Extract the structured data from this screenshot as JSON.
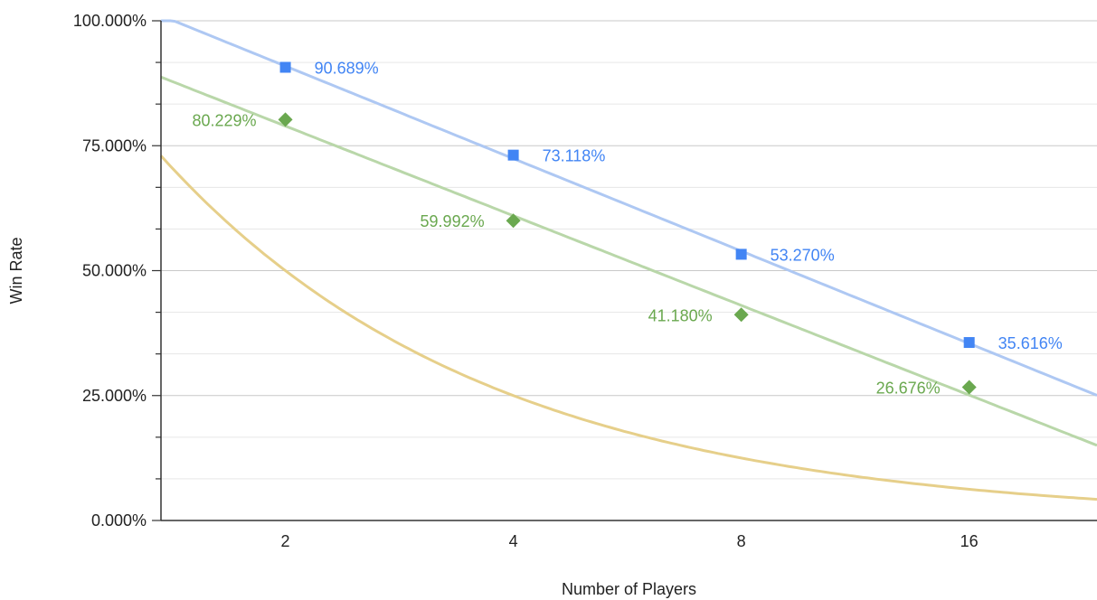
{
  "chart_data": {
    "type": "scatter",
    "xlabel": "Number of Players",
    "ylabel": "Win Rate",
    "x_scale": "log2",
    "x_ticks": [
      "2",
      "4",
      "8",
      "16"
    ],
    "xlim": [
      1.37,
      23.6
    ],
    "ylim": [
      0,
      1
    ],
    "y_ticks": [
      "0.000%",
      "25.000%",
      "50.000%",
      "75.000%",
      "100.000%"
    ],
    "grid": true,
    "legend": "none",
    "colors": {
      "blue_series": "#4285f4",
      "blue_trend": "#aec8f3",
      "green_series": "#6aa84f",
      "green_trend": "#b9d7a9",
      "gold_curve": "#e6cf8a",
      "grid": "#d9d9d9",
      "axis": "#333333"
    },
    "series": [
      {
        "marker": "square",
        "color": "#4285f4",
        "trendline": "logarithmic",
        "points": [
          {
            "x": 2,
            "y": 0.90689,
            "label": "90.689%"
          },
          {
            "x": 4,
            "y": 0.73118,
            "label": "73.118%"
          },
          {
            "x": 8,
            "y": 0.5327,
            "label": "53.270%"
          },
          {
            "x": 16,
            "y": 0.35616,
            "label": "35.616%"
          }
        ]
      },
      {
        "marker": "diamond",
        "color": "#6aa84f",
        "trendline": "logarithmic",
        "points": [
          {
            "x": 2,
            "y": 0.80229,
            "label": "80.229%"
          },
          {
            "x": 4,
            "y": 0.59992,
            "label": "59.992%"
          },
          {
            "x": 8,
            "y": 0.4118,
            "label": "41.180%"
          },
          {
            "x": 16,
            "y": 0.26676,
            "label": "26.676%"
          }
        ]
      }
    ],
    "reference_curve": {
      "formula": "1/x",
      "color": "#e6cf8a"
    }
  }
}
